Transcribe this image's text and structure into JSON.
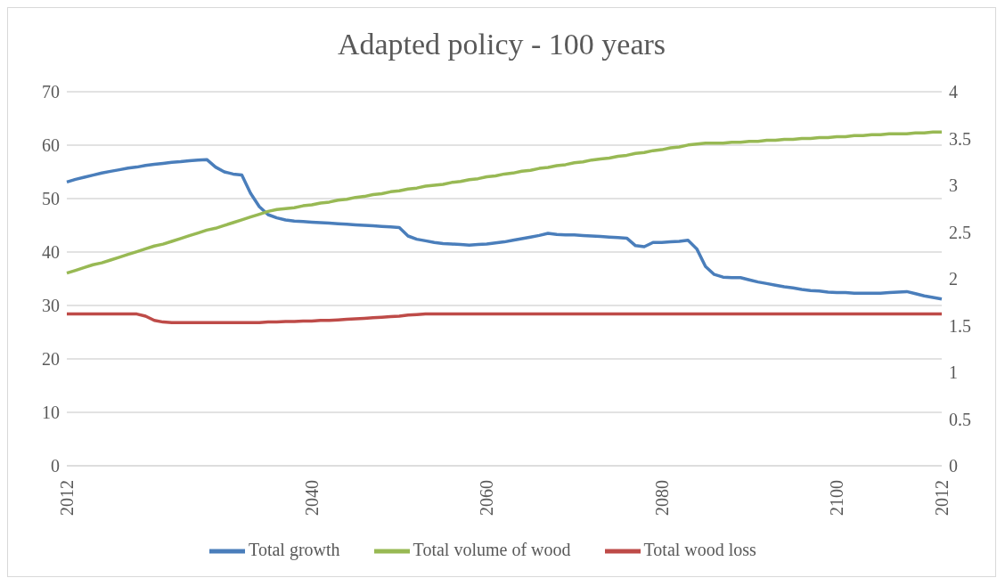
{
  "chart_data": {
    "type": "line",
    "title": "Adapted policy - 100 years",
    "categories": [
      "2012",
      null,
      null,
      null,
      null,
      null,
      null,
      null,
      null,
      null,
      null,
      null,
      null,
      null,
      null,
      null,
      null,
      null,
      null,
      null,
      null,
      null,
      null,
      null,
      null,
      null,
      null,
      null,
      "2040",
      null,
      null,
      null,
      null,
      null,
      null,
      null,
      null,
      null,
      null,
      null,
      null,
      null,
      null,
      null,
      null,
      null,
      null,
      null,
      "2060",
      null,
      null,
      null,
      null,
      null,
      null,
      null,
      null,
      null,
      null,
      null,
      null,
      null,
      null,
      null,
      null,
      null,
      null,
      null,
      "2080",
      null,
      null,
      null,
      null,
      null,
      null,
      null,
      null,
      null,
      null,
      null,
      null,
      null,
      null,
      null,
      null,
      null,
      null,
      null,
      "2100",
      null,
      null,
      null,
      null,
      null,
      null,
      null,
      null,
      null,
      null,
      null,
      "2012"
    ],
    "series": [
      {
        "name": "Total growth",
        "color": "#4a7ebb",
        "values": [
          53.1,
          53.6,
          54.0,
          54.4,
          54.8,
          55.1,
          55.4,
          55.7,
          55.9,
          56.2,
          56.4,
          56.6,
          56.8,
          56.9,
          57.1,
          57.2,
          57.3,
          55.9,
          55.0,
          54.6,
          54.4,
          51.0,
          48.5,
          47.0,
          46.4,
          46.0,
          45.8,
          45.7,
          45.6,
          45.5,
          45.4,
          45.3,
          45.2,
          45.1,
          45.0,
          44.9,
          44.8,
          44.7,
          44.6,
          43.0,
          42.4,
          42.1,
          41.8,
          41.6,
          41.5,
          41.4,
          41.3,
          41.4,
          41.5,
          41.7,
          41.9,
          42.2,
          42.5,
          42.8,
          43.1,
          43.5,
          43.3,
          43.2,
          43.2,
          43.1,
          43.0,
          42.9,
          42.8,
          42.7,
          42.6,
          41.2,
          41.0,
          41.8,
          41.8,
          41.9,
          42.0,
          42.2,
          40.6,
          37.3,
          35.8,
          35.3,
          35.2,
          35.2,
          34.8,
          34.4,
          34.1,
          33.8,
          33.5,
          33.3,
          33.0,
          32.8,
          32.7,
          32.5,
          32.4,
          32.4,
          32.3,
          32.3,
          32.3,
          32.3,
          32.4,
          32.5,
          32.6,
          32.2,
          31.8,
          31.5,
          31.2
        ]
      },
      {
        "name": "Total wood loss",
        "color": "#be4b48",
        "values": [
          28.4,
          28.4,
          28.4,
          28.4,
          28.4,
          28.4,
          28.4,
          28.4,
          28.4,
          28.0,
          27.2,
          26.9,
          26.8,
          26.8,
          26.8,
          26.8,
          26.8,
          26.8,
          26.8,
          26.8,
          26.8,
          26.8,
          26.8,
          26.9,
          26.9,
          27.0,
          27.0,
          27.1,
          27.1,
          27.2,
          27.2,
          27.3,
          27.4,
          27.5,
          27.6,
          27.7,
          27.8,
          27.9,
          28.0,
          28.2,
          28.3,
          28.4,
          28.4,
          28.4,
          28.4,
          28.4,
          28.4,
          28.4,
          28.4,
          28.4,
          28.4,
          28.4,
          28.4,
          28.4,
          28.4,
          28.4,
          28.4,
          28.4,
          28.4,
          28.4,
          28.4,
          28.4,
          28.4,
          28.4,
          28.4,
          28.4,
          28.4,
          28.4,
          28.4,
          28.4,
          28.4,
          28.4,
          28.4,
          28.4,
          28.4,
          28.4,
          28.4,
          28.4,
          28.4,
          28.4,
          28.4,
          28.4,
          28.4,
          28.4,
          28.4,
          28.4,
          28.4,
          28.4,
          28.4,
          28.4,
          28.4,
          28.4,
          28.4,
          28.4,
          28.4,
          28.4,
          28.4,
          28.4,
          28.4,
          28.4,
          28.4
        ]
      },
      {
        "name": "Total volume of wood",
        "color": "#98b954",
        "axis": "y2",
        "values": [
          2.06,
          2.09,
          2.12,
          2.15,
          2.17,
          2.2,
          2.23,
          2.26,
          2.29,
          2.32,
          2.35,
          2.37,
          2.4,
          2.43,
          2.46,
          2.49,
          2.52,
          2.54,
          2.57,
          2.6,
          2.63,
          2.66,
          2.69,
          2.72,
          2.74,
          2.75,
          2.76,
          2.78,
          2.79,
          2.81,
          2.82,
          2.84,
          2.85,
          2.87,
          2.88,
          2.9,
          2.91,
          2.93,
          2.94,
          2.96,
          2.97,
          2.99,
          3.0,
          3.01,
          3.03,
          3.04,
          3.06,
          3.07,
          3.09,
          3.1,
          3.12,
          3.13,
          3.15,
          3.16,
          3.18,
          3.19,
          3.21,
          3.22,
          3.24,
          3.25,
          3.27,
          3.28,
          3.29,
          3.31,
          3.32,
          3.34,
          3.35,
          3.37,
          3.38,
          3.4,
          3.41,
          3.43,
          3.44,
          3.45,
          3.45,
          3.45,
          3.46,
          3.46,
          3.47,
          3.47,
          3.48,
          3.48,
          3.49,
          3.49,
          3.5,
          3.5,
          3.51,
          3.51,
          3.52,
          3.52,
          3.53,
          3.53,
          3.54,
          3.54,
          3.55,
          3.55,
          3.55,
          3.56,
          3.56,
          3.57,
          3.57
        ]
      }
    ],
    "ylim": [
      0,
      70
    ],
    "yticks": [
      0,
      10,
      20,
      30,
      40,
      50,
      60,
      70
    ],
    "y2lim": [
      0,
      4
    ],
    "y2ticks": [
      0,
      0.5,
      1,
      1.5,
      2,
      2.5,
      3,
      3.5,
      4
    ],
    "grid": "y",
    "legend": "bottom",
    "marker": "none",
    "line_style": "solid"
  }
}
